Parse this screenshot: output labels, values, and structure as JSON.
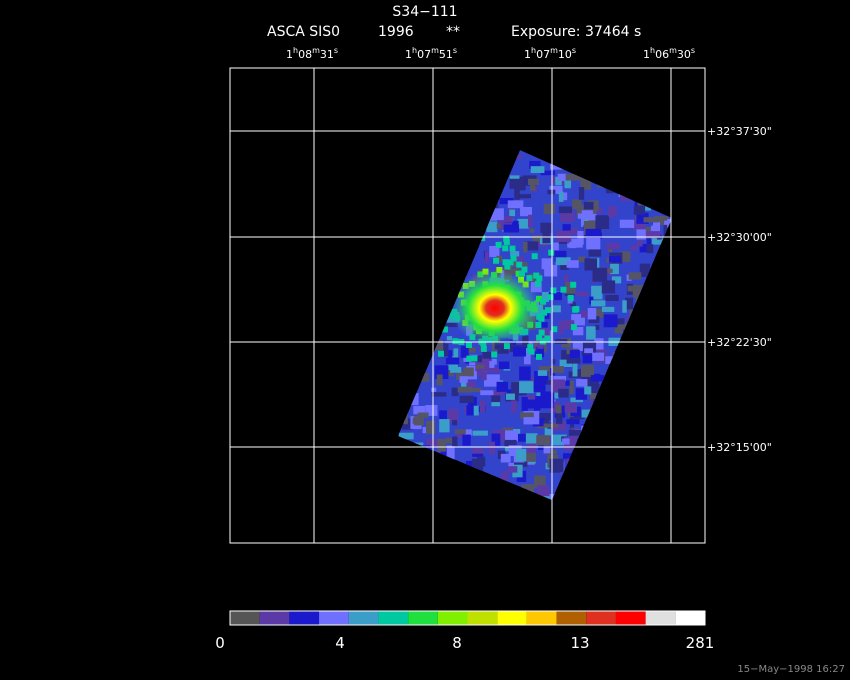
{
  "header": {
    "title": "S34−111",
    "instrument": "ASCA SIS0",
    "year": "1996",
    "flag": "**",
    "exposure": "Exposure: 37464 s"
  },
  "ra_labels": [
    [
      "1",
      "h",
      "08",
      "m",
      "31",
      "s"
    ],
    [
      "1",
      "h",
      "07",
      "m",
      "51",
      "s"
    ],
    [
      "1",
      "h",
      "07",
      "m",
      "10",
      "s"
    ],
    [
      "1",
      "h",
      "06",
      "m",
      "30",
      "s"
    ]
  ],
  "dec_labels": [
    "+32°37'30\"",
    "+32°30'00\"",
    "+32°22'30\"",
    "+32°15'00\""
  ],
  "colorbar_labels": [
    "0",
    "4",
    "8",
    "13",
    "281"
  ],
  "footer": "15−May−1998 16:27"
}
